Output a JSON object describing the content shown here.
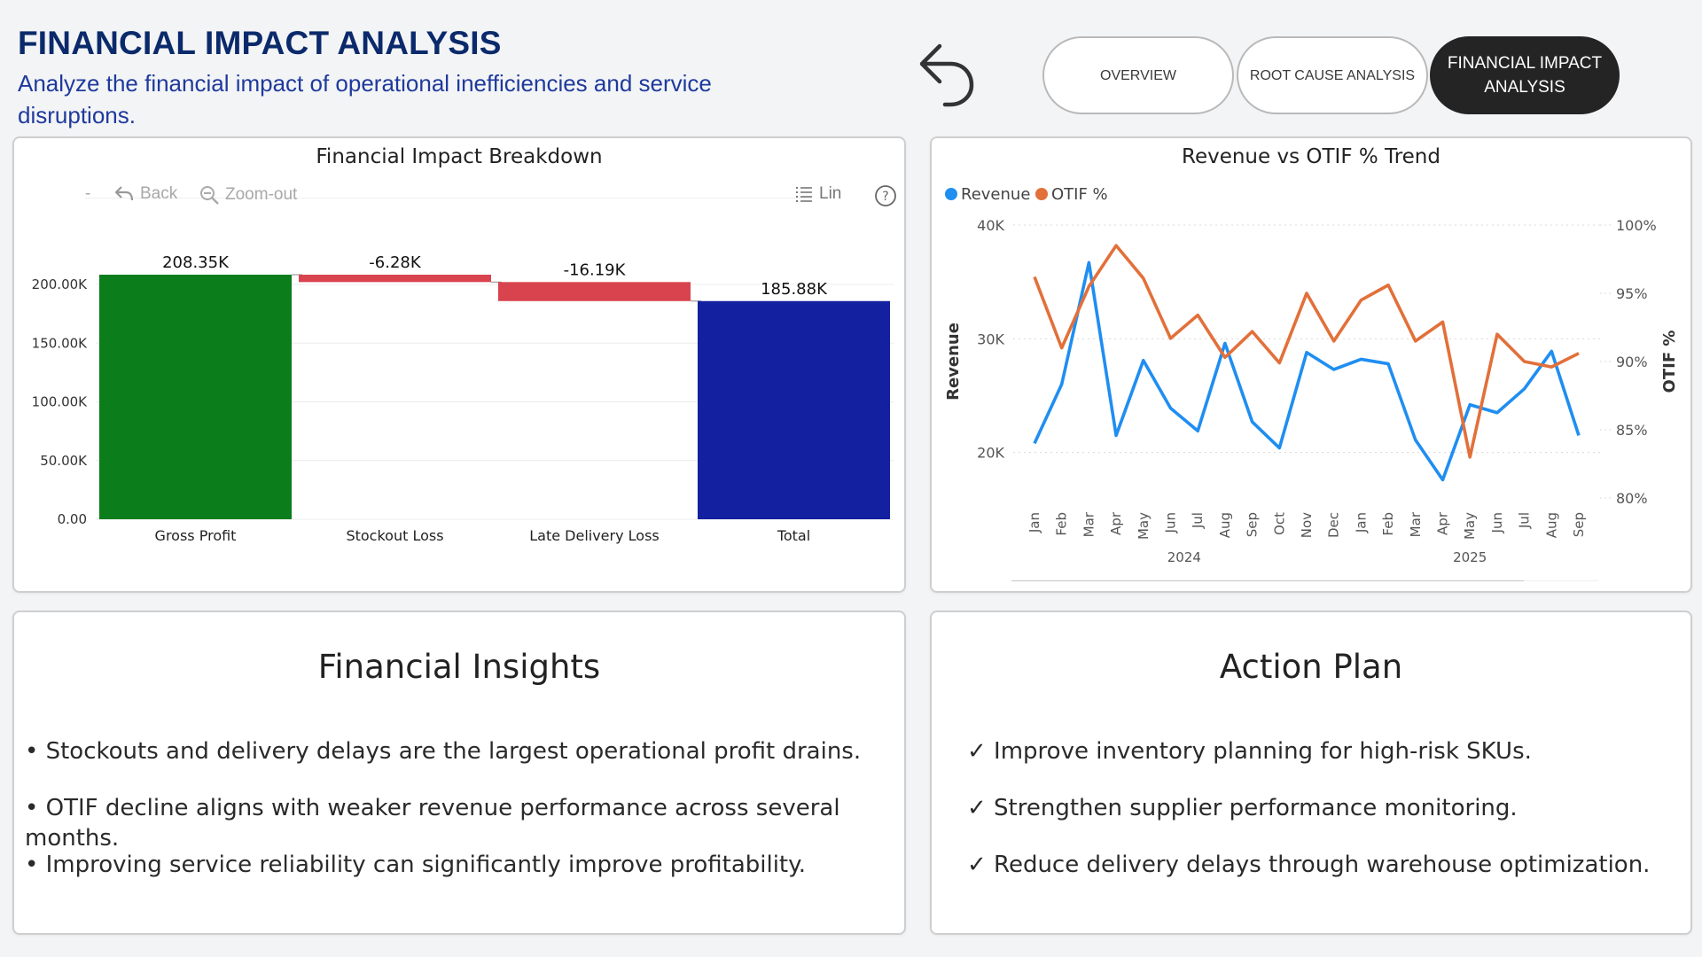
{
  "header": {
    "title": "FINANCIAL IMPACT ANALYSIS",
    "subtitle": "Analyze the financial impact of operational inefficiencies and service disruptions."
  },
  "nav": {
    "back_icon": "undo-arrow-icon",
    "buttons": [
      {
        "label": "OVERVIEW",
        "active": false
      },
      {
        "label": "ROOT CAUSE ANALYSIS",
        "active": false
      },
      {
        "label": "FINANCIAL IMPACT ANALYSIS",
        "active": true
      }
    ]
  },
  "waterfall": {
    "title": "Financial Impact Breakdown",
    "toolbar": {
      "dash": "-",
      "back": "Back",
      "zoom_out": "Zoom-out",
      "lin": "Lin",
      "help": "?"
    }
  },
  "trend": {
    "title": "Revenue vs OTIF % Trend"
  },
  "insights": {
    "title": "Financial Insights",
    "bullets": [
      "• Stockouts and delivery delays are the largest operational profit drains.",
      "• OTIF decline aligns with weaker revenue performance across several months.",
      "• Improving service reliability can significantly improve profitability."
    ]
  },
  "action_plan": {
    "title": "Action Plan",
    "items": [
      "✓ Improve inventory planning for high-risk SKUs.",
      "✓ Strengthen supplier performance monitoring.",
      "✓ Reduce delivery delays through warehouse optimization."
    ]
  },
  "colors": {
    "increase": "#0b7d1b",
    "decrease": "#d9434e",
    "total": "#13209f",
    "revenue": "#1f8ef1",
    "otif": "#e2703a"
  },
  "chart_data": [
    {
      "type": "bar",
      "subtype": "waterfall",
      "title": "Financial Impact Breakdown",
      "categories": [
        "Gross Profit",
        "Stockout Loss",
        "Late Delivery Loss",
        "Total"
      ],
      "values": [
        208350,
        -6280,
        -16190,
        185880
      ],
      "data_labels": [
        "208.35K",
        "-6.28K",
        "-16.19K",
        "185.88K"
      ],
      "ylim": [
        0,
        208350
      ],
      "yticks": [
        0,
        50000,
        100000,
        150000,
        200000
      ],
      "ytick_labels": [
        "0.00",
        "50.00K",
        "100.00K",
        "150.00K",
        "200.00K"
      ],
      "grid": true
    },
    {
      "type": "line",
      "title": "Revenue vs OTIF % Trend",
      "x": [
        "Jan",
        "Feb",
        "Mar",
        "Apr",
        "May",
        "Jun",
        "Jul",
        "Aug",
        "Sep",
        "Oct",
        "Nov",
        "Dec",
        "Jan",
        "Feb",
        "Mar",
        "Apr",
        "May",
        "Jun",
        "Jul",
        "Aug",
        "Sep"
      ],
      "x_groups": [
        {
          "label": "2024",
          "count": 12
        },
        {
          "label": "2025",
          "count": 9
        }
      ],
      "ylabel": "Revenue",
      "y2label": "OTIF %",
      "ylim": [
        16000,
        40000
      ],
      "yticks": [
        20000,
        30000,
        40000
      ],
      "ytick_labels": [
        "20K",
        "30K",
        "40K"
      ],
      "y2lim": [
        80,
        100
      ],
      "y2ticks": [
        80,
        85,
        90,
        95,
        100
      ],
      "y2tick_labels": [
        "80%",
        "85%",
        "90%",
        "95%",
        "100%"
      ],
      "legend_position": "top-left",
      "grid": true,
      "series": [
        {
          "name": "Revenue",
          "axis": "left",
          "values": [
            20800,
            26000,
            36700,
            21500,
            28100,
            23900,
            21900,
            29600,
            22700,
            20400,
            28800,
            27300,
            28200,
            27800,
            21100,
            17600,
            24200,
            23500,
            25600,
            28900,
            21500
          ]
        },
        {
          "name": "OTIF %",
          "axis": "right",
          "values": [
            96.2,
            91.0,
            95.5,
            98.5,
            96.1,
            91.7,
            93.4,
            90.3,
            92.2,
            89.9,
            95.0,
            91.5,
            94.5,
            95.6,
            91.5,
            92.9,
            83.0,
            92.0,
            90.0,
            89.6,
            90.6
          ]
        }
      ]
    }
  ]
}
